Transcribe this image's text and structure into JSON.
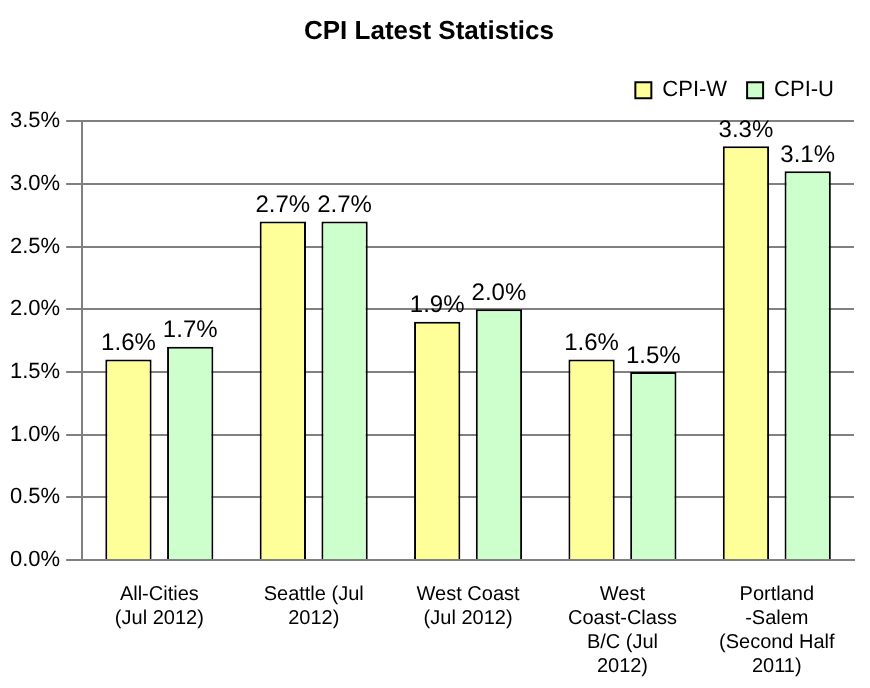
{
  "chart_data": {
    "type": "bar",
    "title": "CPI Latest Statistics",
    "categories": [
      "All-Cities (Jul 2012)",
      "Seattle (Jul 2012)",
      "West Coast (Jul 2012)",
      "West Coast-Class B/C (Jul 2012)",
      "Portland -Salem (Second Half 2011)"
    ],
    "series": [
      {
        "name": "CPI-W",
        "color": "#ffff99",
        "values": [
          1.6,
          2.7,
          1.9,
          1.6,
          3.3
        ],
        "value_labels": [
          "1.6%",
          "2.7%",
          "1.9%",
          "1.6%",
          "3.3%"
        ]
      },
      {
        "name": "CPI-U",
        "color": "#ccffcc",
        "values": [
          1.7,
          2.7,
          2.0,
          1.5,
          3.1
        ],
        "value_labels": [
          "1.7%",
          "2.7%",
          "2.0%",
          "1.5%",
          "3.1%"
        ]
      }
    ],
    "ylim": [
      0,
      3.5
    ],
    "yticks": [
      {
        "value": 0,
        "label": "0.0%"
      },
      {
        "value": 0.5,
        "label": "0.5%"
      },
      {
        "value": 1,
        "label": "1.0%"
      },
      {
        "value": 1.5,
        "label": "1.5%"
      },
      {
        "value": 2,
        "label": "2.0%"
      },
      {
        "value": 2.5,
        "label": "2.5%"
      },
      {
        "value": 3,
        "label": "3.0%"
      },
      {
        "value": 3.5,
        "label": "3.5%"
      }
    ],
    "grid": "y",
    "legend": "top right"
  }
}
